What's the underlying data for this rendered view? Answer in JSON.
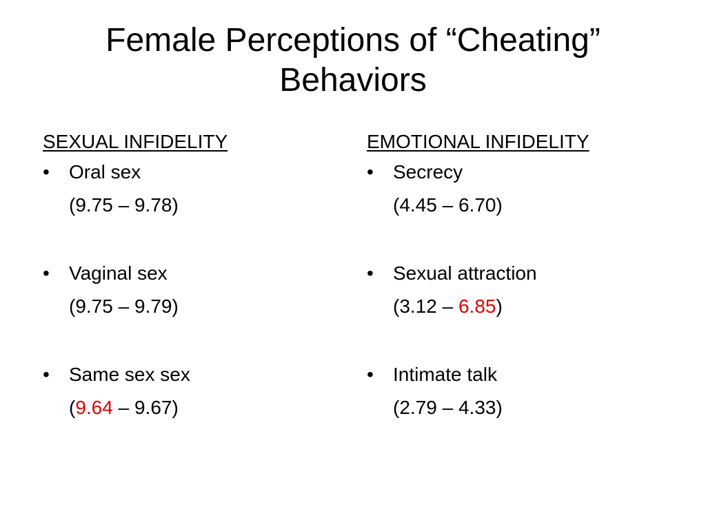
{
  "title": {
    "line1": "Female Perceptions of “Cheating”",
    "line2": "Behaviors"
  },
  "colors": {
    "highlight": "#e00000",
    "text": "#000000",
    "background": "#ffffff"
  },
  "left_column": {
    "heading": "SEXUAL INFIDELITY",
    "bullet_glyph": "•",
    "items": [
      {
        "label": "Oral sex",
        "open": "(",
        "low": "9.75",
        "sep": " – ",
        "high": "9.78",
        "close": ")"
      },
      {
        "label": "Vaginal sex",
        "open": "(",
        "low": "9.75",
        "sep": " – ",
        "high": "9.79",
        "close": ")"
      },
      {
        "label": "Same sex sex",
        "open": "(",
        "low": "9.64",
        "sep": " – ",
        "high": "9.67",
        "close": ")"
      }
    ]
  },
  "right_column": {
    "heading": "EMOTIONAL INFIDELITY",
    "bullet_glyph": "•",
    "items": [
      {
        "label": "Secrecy",
        "open": "(",
        "low": "4.45",
        "sep": " – ",
        "high": "6.70",
        "close": ")"
      },
      {
        "label": "Sexual attraction",
        "open": "(",
        "low": "3.12",
        "sep": " – ",
        "high": "6.85",
        "close": ")"
      },
      {
        "label": "Intimate talk",
        "open": "(",
        "low": "2.79",
        "sep": " – ",
        "high": "4.33",
        "close": ")"
      }
    ]
  }
}
